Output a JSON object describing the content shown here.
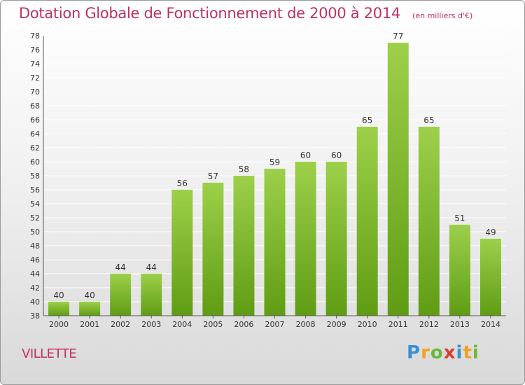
{
  "title": "Dotation Globale de Fonctionnement de 2000 à 2014",
  "unit": "(en milliers d'€)",
  "commune": "VILLETTE",
  "brand": {
    "letters": [
      "P",
      "r",
      "o",
      "x",
      "i",
      "t",
      "i"
    ],
    "colors": [
      "#3b8fd3",
      "#f2a01e",
      "#6cb83a",
      "#e23a2e",
      "#3b8fd3",
      "#f2a01e",
      "#6cb83a"
    ]
  },
  "colors": {
    "accent": "#c0305f",
    "bar_top": "#9dd04a",
    "bar_bottom": "#5f9c14",
    "grid": "#ffffff",
    "axis": "#555555"
  },
  "chart_data": {
    "type": "bar",
    "categories": [
      "2000",
      "2001",
      "2002",
      "2003",
      "2004",
      "2005",
      "2006",
      "2007",
      "2008",
      "2009",
      "2010",
      "2011",
      "2012",
      "2013",
      "2014"
    ],
    "values": [
      40,
      40,
      44,
      44,
      56,
      57,
      58,
      59,
      60,
      60,
      65,
      77,
      65,
      51,
      49
    ],
    "ylim": [
      38,
      78
    ],
    "yticks": [
      38,
      40,
      42,
      44,
      46,
      48,
      50,
      52,
      54,
      56,
      58,
      60,
      62,
      64,
      66,
      68,
      70,
      72,
      74,
      76,
      78
    ],
    "grid": true,
    "legend": "none"
  }
}
